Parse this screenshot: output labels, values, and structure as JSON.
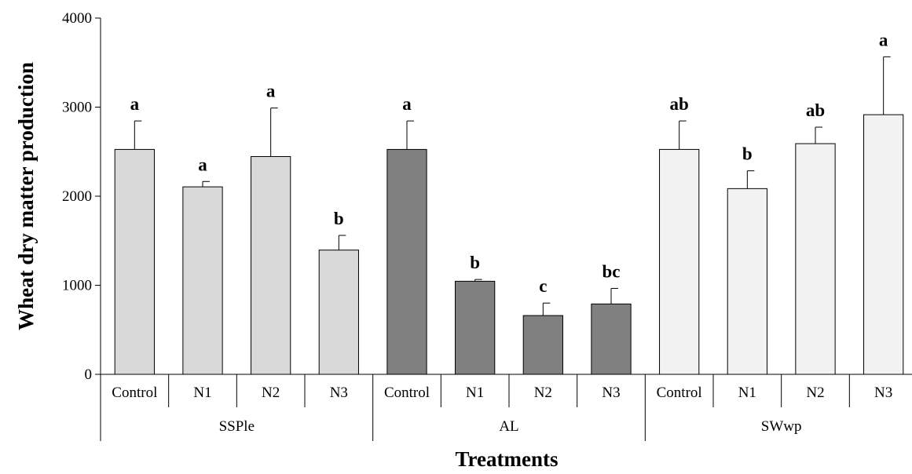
{
  "chart_data": {
    "type": "bar",
    "xlabel": "Treatments",
    "ylabel": "Wheat dry matter production",
    "ylim": [
      0,
      4000
    ],
    "yticks": [
      0,
      1000,
      2000,
      3000,
      4000
    ],
    "grid": false,
    "groups": [
      {
        "name": "SSPle",
        "color": "#d9d9d9",
        "categories": [
          "Control",
          "N1",
          "N2",
          "N3"
        ],
        "values": [
          2525,
          2105,
          2445,
          1395
        ],
        "errors": [
          320,
          60,
          545,
          165
        ],
        "labels": [
          "a",
          "a",
          "a",
          "b"
        ]
      },
      {
        "name": "AL",
        "color": "#808080",
        "categories": [
          "Control",
          "N1",
          "N2",
          "N3"
        ],
        "values": [
          2525,
          1045,
          660,
          790
        ],
        "errors": [
          320,
          20,
          140,
          175
        ],
        "labels": [
          "a",
          "b",
          "c",
          "bc"
        ]
      },
      {
        "name": "SWwp",
        "color": "#f2f2f2",
        "categories": [
          "Control",
          "N1",
          "N2",
          "N3"
        ],
        "values": [
          2525,
          2085,
          2590,
          2915
        ],
        "errors": [
          320,
          200,
          185,
          650
        ],
        "labels": [
          "ab",
          "b",
          "ab",
          "a"
        ]
      }
    ]
  }
}
